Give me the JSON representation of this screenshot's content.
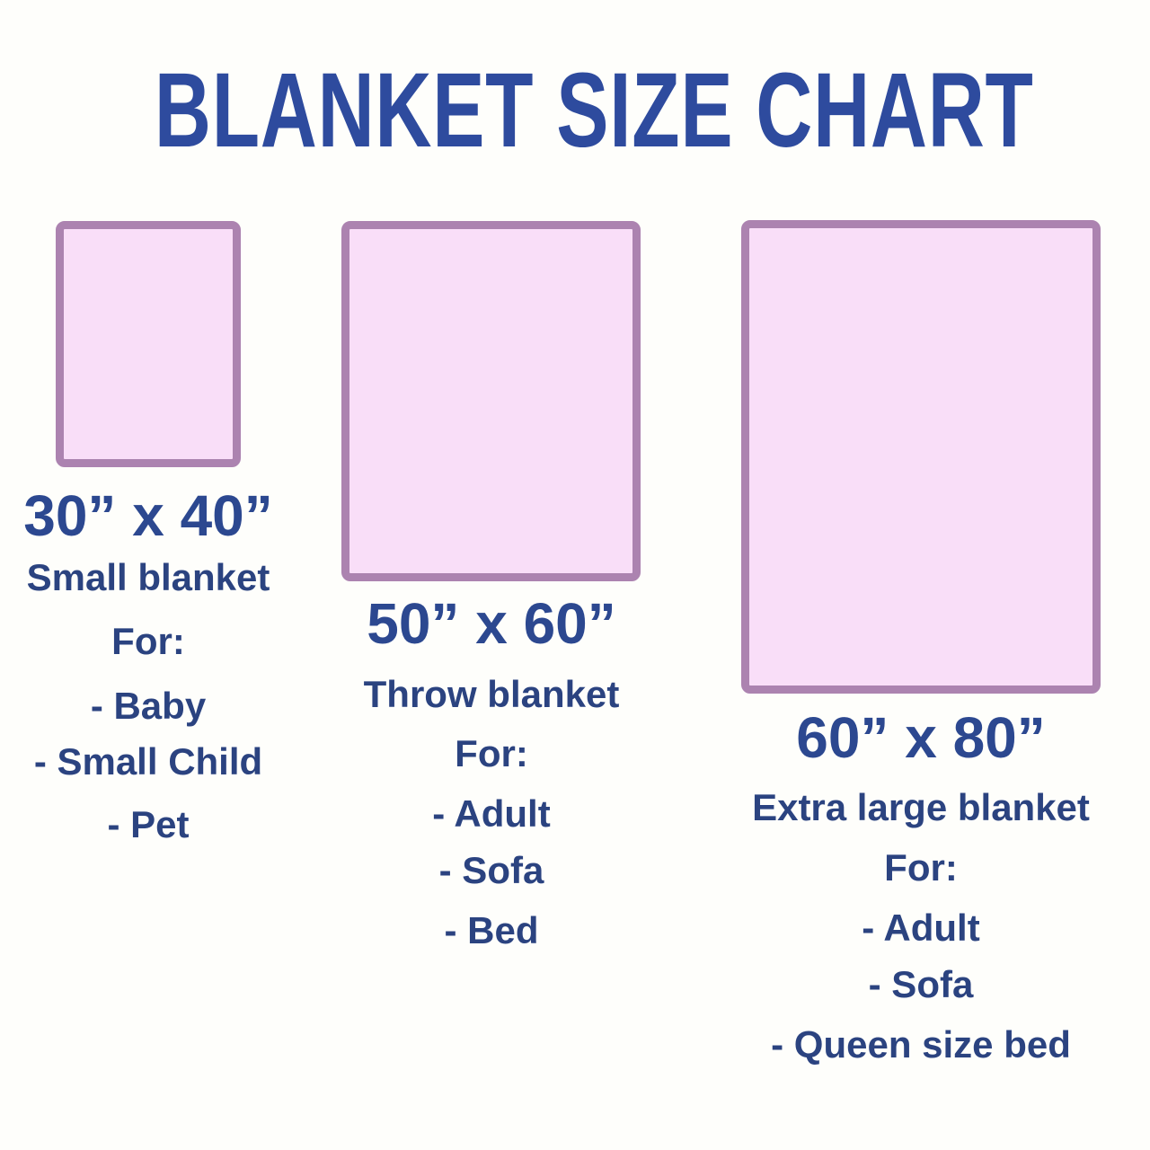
{
  "title": "BLANKET SIZE CHART",
  "colors": {
    "title_blue": "#2E4B9E",
    "text_navy": "#2B4380",
    "blanket_fill": "#F9DEF8",
    "blanket_border": "#AC83B0",
    "background": "#FEFEFB"
  },
  "columns": [
    {
      "size_label": "30” x 40”",
      "type_label": "Small blanket",
      "for_label": "For:",
      "items": [
        "- Baby",
        "- Small Child",
        "- Pet"
      ]
    },
    {
      "size_label": "50” x 60”",
      "type_label": "Throw blanket",
      "for_label": "For:",
      "items": [
        "- Adult",
        "- Sofa",
        "- Bed"
      ]
    },
    {
      "size_label": "60” x 80”",
      "type_label": "Extra large blanket",
      "for_label": "For:",
      "items": [
        "- Adult",
        "- Sofa",
        "- Queen size bed"
      ]
    }
  ]
}
